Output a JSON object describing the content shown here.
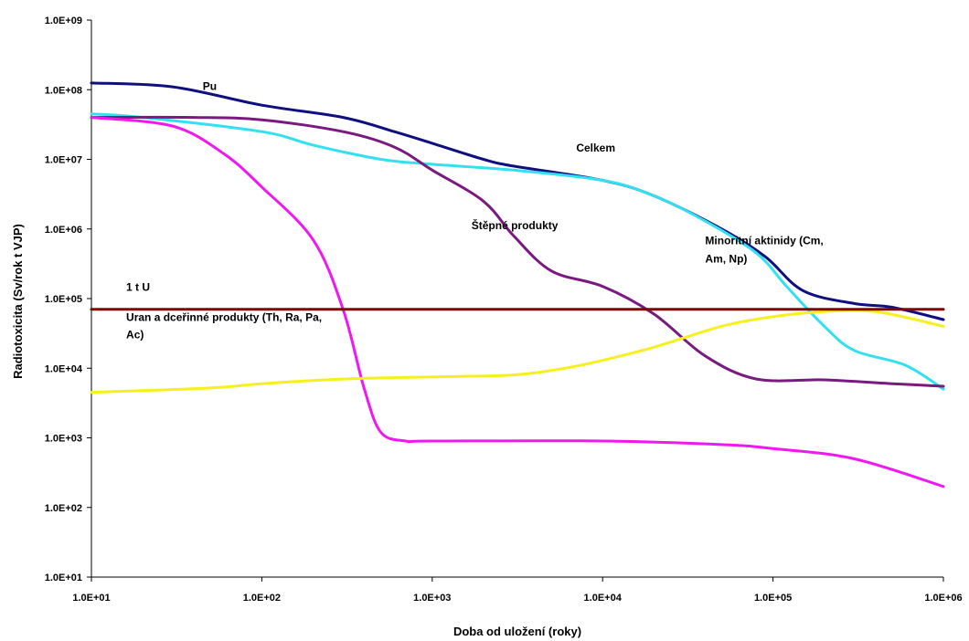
{
  "chart_data": {
    "type": "line",
    "xlabel": "Doba od uložení (roky)",
    "ylabel": "Radiotoxicita (Sv/rok t VJP)",
    "xscale": "log",
    "yscale": "log",
    "xlim": [
      10,
      1000000
    ],
    "ylim": [
      10,
      1000000000
    ],
    "x_tick_labels": [
      "1.0E+01",
      "1.0E+02",
      "1.0E+03",
      "1.0E+04",
      "1.0E+05",
      "1.0E+06"
    ],
    "y_tick_labels": [
      "1.0E+01",
      "1.0E+02",
      "1.0E+03",
      "1.0E+04",
      "1.0E+05",
      "1.0E+06",
      "1.0E+07",
      "1.0E+08",
      "1.0E+09"
    ],
    "grid": false,
    "legend": "none",
    "series": [
      {
        "name": "Celkem",
        "color": "#0f0f80",
        "points": [
          [
            10,
            125000000
          ],
          [
            30,
            110000000
          ],
          [
            100,
            60000000
          ],
          [
            300,
            40000000
          ],
          [
            600,
            25000000
          ],
          [
            1000,
            17000000
          ],
          [
            2000,
            10000000
          ],
          [
            3000,
            8000000
          ],
          [
            10000,
            5000000
          ],
          [
            20000,
            3000000
          ],
          [
            50000,
            1000000
          ],
          [
            90000,
            400000
          ],
          [
            150000,
            130000
          ],
          [
            300000,
            85000
          ],
          [
            500000,
            75000
          ],
          [
            1000000,
            50000
          ]
        ]
      },
      {
        "name": "Pu",
        "color": "#33e0f0",
        "points": [
          [
            10,
            45000000
          ],
          [
            20,
            40000000
          ],
          [
            100,
            25000000
          ],
          [
            200,
            16000000
          ],
          [
            500,
            10000000
          ],
          [
            1000,
            8500000
          ],
          [
            3000,
            7000000
          ],
          [
            10000,
            5000000
          ],
          [
            20000,
            3000000
          ],
          [
            40000,
            1300000
          ],
          [
            80000,
            450000
          ],
          [
            120000,
            150000
          ],
          [
            200000,
            40000
          ],
          [
            300000,
            18000
          ],
          [
            600000,
            11000
          ],
          [
            1000000,
            5000
          ]
        ]
      },
      {
        "name": "Minoritní aktinidy (Cm, Am, Np)",
        "color": "#7a1a80",
        "points": [
          [
            10,
            40000000
          ],
          [
            40,
            40000000
          ],
          [
            100,
            37000000
          ],
          [
            300,
            25000000
          ],
          [
            600,
            15000000
          ],
          [
            1000,
            7000000
          ],
          [
            2000,
            2500000
          ],
          [
            3000,
            800000
          ],
          [
            5000,
            250000
          ],
          [
            10000,
            150000
          ],
          [
            20000,
            60000
          ],
          [
            40000,
            15000
          ],
          [
            80000,
            7000
          ],
          [
            200000,
            6800
          ],
          [
            500000,
            6000
          ],
          [
            1000000,
            5500
          ]
        ]
      },
      {
        "name": "Štěpné produkty",
        "color": "#f018f0",
        "points": [
          [
            10,
            40000000
          ],
          [
            30,
            30000000
          ],
          [
            60,
            12000000
          ],
          [
            100,
            4000000
          ],
          [
            200,
            700000
          ],
          [
            300,
            70000
          ],
          [
            400,
            5000
          ],
          [
            500,
            1200
          ],
          [
            700,
            900
          ],
          [
            1000,
            900
          ],
          [
            10000,
            900
          ],
          [
            50000,
            800
          ],
          [
            100000,
            700
          ],
          [
            300000,
            500
          ],
          [
            1000000,
            200
          ]
        ]
      },
      {
        "name": "Uran a dceřinné produkty (Th, Ra, Pa, Ac)",
        "color": "#f5f01e",
        "points": [
          [
            10,
            4500
          ],
          [
            50,
            5200
          ],
          [
            100,
            6000
          ],
          [
            300,
            7000
          ],
          [
            1000,
            7500
          ],
          [
            3000,
            8000
          ],
          [
            6000,
            10000
          ],
          [
            10000,
            13000
          ],
          [
            20000,
            20000
          ],
          [
            50000,
            40000
          ],
          [
            100000,
            55000
          ],
          [
            200000,
            65000
          ],
          [
            400000,
            65000
          ],
          [
            1000000,
            40000
          ]
        ]
      },
      {
        "name": "1 t U",
        "color": "#8b0000",
        "points": [
          [
            10,
            70000
          ],
          [
            1000000,
            70000
          ]
        ]
      }
    ],
    "annotations": [
      {
        "text": "Pu",
        "x": 45,
        "y": 100000000
      },
      {
        "text": "Celkem",
        "x": 7000,
        "y": 13000000
      },
      {
        "text": "Štěpné produkty",
        "x": 1700,
        "y": 1000000
      },
      {
        "text": "Minoritní aktinidy (Cm,",
        "x": 40000,
        "y": 600000
      },
      {
        "text": "Am, Np)",
        "x": 40000,
        "y": 330000
      },
      {
        "text": "1 t U",
        "x": 16,
        "y": 130000
      },
      {
        "text": "Uran a dceřinné produkty (Th, Ra, Pa,",
        "x": 16,
        "y": 48000
      },
      {
        "text": "Ac)",
        "x": 16,
        "y": 27000
      }
    ]
  }
}
